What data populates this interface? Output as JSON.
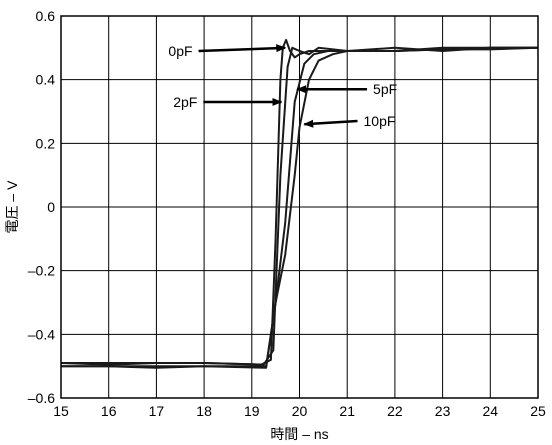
{
  "chart_data": {
    "type": "line",
    "title": "",
    "xlabel": "時間 – ns",
    "ylabel": "電圧 – V",
    "xlim": [
      15,
      25
    ],
    "ylim": [
      -0.6,
      0.6
    ],
    "x_ticks": [
      15,
      16,
      17,
      18,
      19,
      20,
      21,
      22,
      23,
      24,
      25
    ],
    "y_ticks": [
      -0.6,
      -0.4,
      -0.2,
      0,
      0.2,
      0.4,
      0.6
    ],
    "x_tick_labels": [
      "15",
      "16",
      "17",
      "18",
      "19",
      "20",
      "21",
      "22",
      "23",
      "24",
      "25"
    ],
    "y_tick_labels": [
      "–0.6",
      "–0.4",
      "–0.2",
      "0",
      "0.2",
      "0.4",
      "0.6"
    ],
    "grid": true,
    "legend": "none",
    "line_color": "#1a1a1a",
    "series": [
      {
        "points": [
          [
            15,
            -0.49
          ],
          [
            16,
            -0.49
          ],
          [
            17,
            -0.49
          ],
          [
            18,
            -0.49
          ],
          [
            19.2,
            -0.495
          ],
          [
            19.4,
            -0.48
          ],
          [
            19.5,
            -0.1
          ],
          [
            19.6,
            0.4
          ],
          [
            19.65,
            0.5
          ],
          [
            19.72,
            0.525
          ],
          [
            19.8,
            0.49
          ],
          [
            19.9,
            0.47
          ],
          [
            20.0,
            0.48
          ],
          [
            20.2,
            0.49
          ],
          [
            21,
            0.49
          ],
          [
            22,
            0.49
          ],
          [
            23,
            0.495
          ],
          [
            24,
            0.5
          ],
          [
            25,
            0.5
          ]
        ]
      },
      {
        "points": [
          [
            15,
            -0.49
          ],
          [
            16,
            -0.495
          ],
          [
            17,
            -0.49
          ],
          [
            18,
            -0.49
          ],
          [
            19.25,
            -0.495
          ],
          [
            19.45,
            -0.45
          ],
          [
            19.6,
            0.1
          ],
          [
            19.75,
            0.44
          ],
          [
            19.85,
            0.5
          ],
          [
            20.0,
            0.49
          ],
          [
            20.2,
            0.48
          ],
          [
            20.4,
            0.5
          ],
          [
            21,
            0.49
          ],
          [
            22,
            0.5
          ],
          [
            23,
            0.49
          ],
          [
            24,
            0.5
          ],
          [
            25,
            0.5
          ]
        ]
      },
      {
        "points": [
          [
            15,
            -0.5
          ],
          [
            16,
            -0.5
          ],
          [
            17,
            -0.5
          ],
          [
            18,
            -0.5
          ],
          [
            19.3,
            -0.5
          ],
          [
            19.5,
            -0.3
          ],
          [
            19.7,
            -0.05
          ],
          [
            19.9,
            0.33
          ],
          [
            20.1,
            0.45
          ],
          [
            20.3,
            0.48
          ],
          [
            20.6,
            0.49
          ],
          [
            21,
            0.49
          ],
          [
            22,
            0.49
          ],
          [
            23,
            0.5
          ],
          [
            24,
            0.5
          ],
          [
            25,
            0.5
          ]
        ]
      },
      {
        "points": [
          [
            15,
            -0.5
          ],
          [
            16,
            -0.5
          ],
          [
            17,
            -0.505
          ],
          [
            18,
            -0.5
          ],
          [
            19.3,
            -0.505
          ],
          [
            19.5,
            -0.3
          ],
          [
            19.7,
            -0.15
          ],
          [
            19.9,
            0.1
          ],
          [
            20.0,
            0.25
          ],
          [
            20.2,
            0.4
          ],
          [
            20.4,
            0.46
          ],
          [
            20.7,
            0.48
          ],
          [
            21,
            0.49
          ],
          [
            22,
            0.49
          ],
          [
            23,
            0.495
          ],
          [
            24,
            0.495
          ],
          [
            25,
            0.5
          ]
        ]
      }
    ],
    "annotations": [
      {
        "label": "0pF",
        "point": [
          19.7,
          0.5
        ],
        "text_pos": [
          17.8,
          0.49
        ],
        "text_anchor": "end"
      },
      {
        "label": "2pF",
        "point": [
          19.62,
          0.33
        ],
        "text_pos": [
          17.9,
          0.33
        ],
        "text_anchor": "end"
      },
      {
        "label": "5pF",
        "point": [
          19.95,
          0.37
        ],
        "text_pos": [
          21.5,
          0.37
        ],
        "text_anchor": "start"
      },
      {
        "label": "10pF",
        "point": [
          20.1,
          0.26
        ],
        "text_pos": [
          21.3,
          0.27
        ],
        "text_anchor": "start"
      }
    ]
  }
}
